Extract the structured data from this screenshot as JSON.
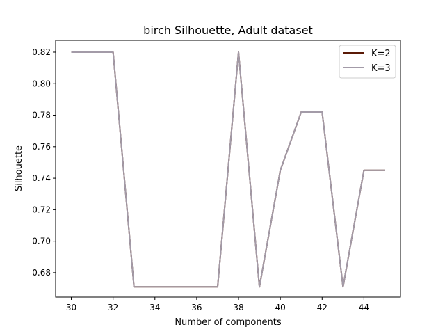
{
  "chart_data": {
    "type": "line",
    "title": "birch Silhouette, Adult dataset",
    "xlabel": "Number of components",
    "ylabel": "Silhouette",
    "xlim": [
      29.25,
      45.75
    ],
    "ylim": [
      0.6645,
      0.8275
    ],
    "x": [
      30,
      31,
      32,
      33,
      34,
      35,
      36,
      37,
      38,
      39,
      40,
      41,
      42,
      43,
      44,
      45
    ],
    "x_ticks": [
      30,
      32,
      34,
      36,
      38,
      40,
      42,
      44
    ],
    "x_tick_labels": [
      "30",
      "32",
      "34",
      "36",
      "38",
      "40",
      "42",
      "44"
    ],
    "y_ticks": [
      0.68,
      0.7,
      0.72,
      0.74,
      0.76,
      0.78,
      0.8,
      0.82
    ],
    "y_tick_labels": [
      "0.68",
      "0.70",
      "0.72",
      "0.74",
      "0.76",
      "0.78",
      "0.80",
      "0.82"
    ],
    "grid": false,
    "legend_position": "top-right",
    "series": [
      {
        "name": "K=2",
        "color": "#5a1a06",
        "values": [
          0.82,
          0.82,
          0.82,
          0.671,
          0.671,
          0.671,
          0.671,
          0.671,
          0.82,
          0.671,
          0.745,
          0.782,
          0.782,
          0.671,
          0.745,
          0.745
        ]
      },
      {
        "name": "K=3",
        "color": "#a39ba8",
        "values": [
          0.82,
          0.82,
          0.82,
          0.671,
          0.671,
          0.671,
          0.671,
          0.671,
          0.82,
          0.671,
          0.745,
          0.782,
          0.782,
          0.671,
          0.745,
          0.745
        ]
      }
    ]
  }
}
